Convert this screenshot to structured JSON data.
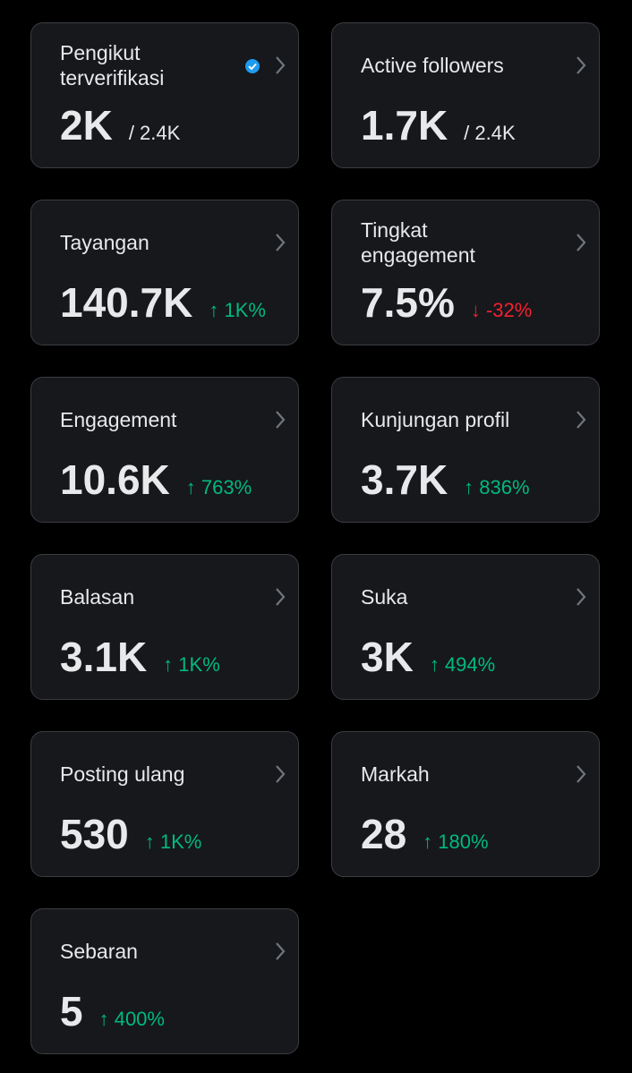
{
  "cards": [
    {
      "title_lines": [
        "Pengikut",
        "terverifikasi"
      ],
      "verified": true,
      "value": "2K",
      "total": "/ 2.4K"
    },
    {
      "title_lines": [
        "Active followers"
      ],
      "value": "1.7K",
      "total": "/ 2.4K"
    },
    {
      "title_lines": [
        "Tayangan"
      ],
      "value": "140.7K",
      "change": "↑ 1K%",
      "change_color": "#00ba7c"
    },
    {
      "title_lines": [
        "Tingkat",
        "engagement"
      ],
      "value": "7.5%",
      "change": "↓ -32%",
      "change_color": "#f4212e"
    },
    {
      "title_lines": [
        "Engagement"
      ],
      "value": "10.6K",
      "change": "↑ 763%",
      "change_color": "#00ba7c"
    },
    {
      "title_lines": [
        "Kunjungan profil"
      ],
      "value": "3.7K",
      "change": "↑ 836%",
      "change_color": "#00ba7c"
    },
    {
      "title_lines": [
        "Balasan"
      ],
      "value": "3.1K",
      "change": "↑ 1K%",
      "change_color": "#00ba7c"
    },
    {
      "title_lines": [
        "Suka"
      ],
      "value": "3K",
      "change": "↑ 494%",
      "change_color": "#00ba7c"
    },
    {
      "title_lines": [
        "Posting ulang"
      ],
      "value": "530",
      "change": "↑ 1K%",
      "change_color": "#00ba7c"
    },
    {
      "title_lines": [
        "Markah"
      ],
      "value": "28",
      "change": "↑ 180%",
      "change_color": "#00ba7c"
    },
    {
      "title_lines": [
        "Sebaran"
      ],
      "value": "5",
      "change": "↑ 400%",
      "change_color": "#00ba7c"
    }
  ]
}
